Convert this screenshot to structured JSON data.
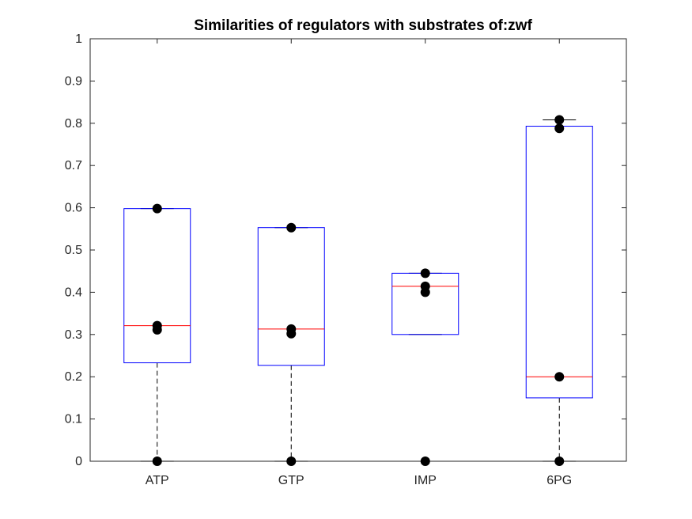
{
  "chart_data": {
    "type": "box",
    "title": "Similarities of regulators with substrates of:zwf",
    "xlabel": "",
    "ylabel": "",
    "categories": [
      "ATP",
      "GTP",
      "IMP",
      "6PG"
    ],
    "ylim": [
      0,
      1
    ],
    "yticks": [
      "0",
      "0.1",
      "0.2",
      "0.3",
      "0.4",
      "0.5",
      "0.6",
      "0.7",
      "0.8",
      "0.9",
      "1"
    ],
    "grid": false,
    "boxes": [
      {
        "category": "ATP",
        "whisker_low": 0,
        "q1": 0.233,
        "median": 0.321,
        "q3": 0.598,
        "whisker_high": 0.598,
        "points": [
          0,
          0.311,
          0.321,
          0.598
        ]
      },
      {
        "category": "GTP",
        "whisker_low": 0,
        "q1": 0.227,
        "median": 0.313,
        "q3": 0.553,
        "whisker_high": 0.553,
        "points": [
          0,
          0.302,
          0.313,
          0.553
        ]
      },
      {
        "category": "IMP",
        "whisker_low": 0.3,
        "q1": 0.3,
        "median": 0.414,
        "q3": 0.445,
        "whisker_high": 0.445,
        "points": [
          0,
          0.4,
          0.414,
          0.445
        ]
      },
      {
        "category": "6PG",
        "whisker_low": 0,
        "q1": 0.15,
        "median": 0.2,
        "q3": 0.793,
        "whisker_high": 0.808,
        "points": [
          0,
          0.2,
          0.788,
          0.808
        ]
      }
    ],
    "colors": {
      "box": "#0000ff",
      "median": "#ff0000",
      "whisker": "#000000",
      "point": "#000000"
    }
  }
}
